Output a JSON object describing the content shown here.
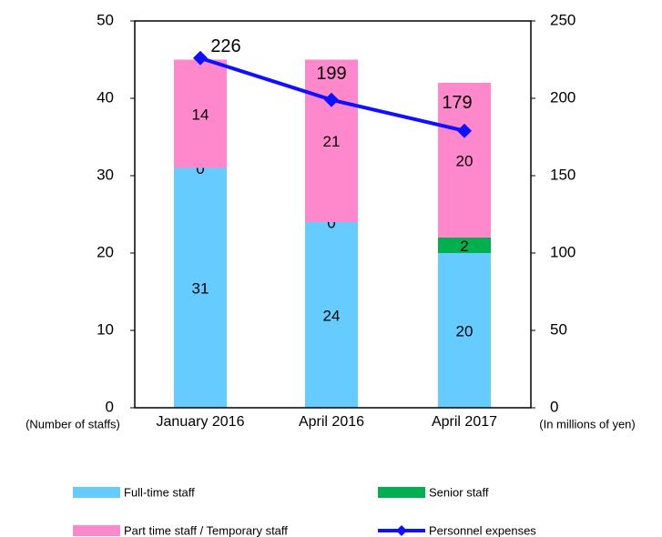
{
  "chart_data": {
    "type": "bar",
    "categories": [
      "January 2016",
      "April 2016",
      "April 2017"
    ],
    "series": [
      {
        "name": "Full-time staff",
        "color": "#66ccff",
        "values": [
          31,
          24,
          20
        ]
      },
      {
        "name": "Senior staff",
        "color": "#00b050",
        "values": [
          0,
          0,
          2
        ]
      },
      {
        "name": "Part time staff / Temporary staff",
        "color": "#ff88cc",
        "values": [
          14,
          21,
          20
        ]
      },
      {
        "name": "Personnel expenses",
        "type": "line",
        "axis": "y2",
        "color": "#1010ff",
        "values": [
          226,
          199,
          179
        ]
      }
    ],
    "stacked": true,
    "ylabel": "(Number of staffs)",
    "y2label": "(In millions of yen)",
    "ylim": [
      0,
      50
    ],
    "yticks": [
      0,
      10,
      20,
      30,
      40,
      50
    ],
    "y2lim": [
      0,
      250
    ],
    "y2ticks": [
      0,
      50,
      100,
      150,
      200,
      250
    ],
    "legend": "bottom"
  }
}
